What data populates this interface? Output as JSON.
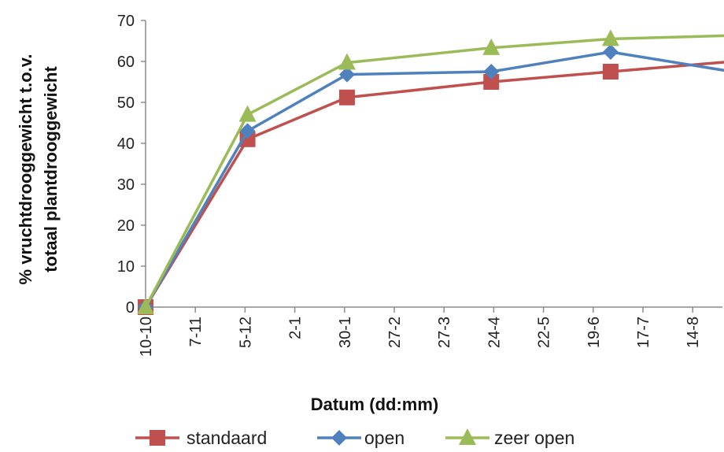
{
  "chart_data": {
    "type": "line",
    "title": "",
    "xlabel": "Datum (dd:mm)",
    "ylabel_lines": [
      "% vruchtdrooggewicht t.o.v.",
      "totaal plantdrooggewicht"
    ],
    "categories": [
      "10-10",
      "7-11",
      "5-12",
      "2-1",
      "30-1",
      "27-2",
      "27-3",
      "24-4",
      "22-5",
      "19-6",
      "17-7",
      "14-8"
    ],
    "ylim": [
      0,
      70
    ],
    "yticks": [
      0,
      10,
      20,
      30,
      40,
      50,
      60,
      70
    ],
    "grid": false,
    "legend_position": "bottom",
    "series": [
      {
        "name": "standaard",
        "color": "#C0504D",
        "marker": "square",
        "points": [
          {
            "x": 0,
            "y": 0
          },
          {
            "x": 2.05,
            "y": 41
          },
          {
            "x": 4.05,
            "y": 51.2
          },
          {
            "x": 6.95,
            "y": 55
          },
          {
            "x": 9.35,
            "y": 57.5
          },
          {
            "x": 12.3,
            "y": 60.5
          }
        ]
      },
      {
        "name": "open",
        "color": "#4F81BD",
        "marker": "diamond",
        "points": [
          {
            "x": 0,
            "y": 0
          },
          {
            "x": 2.05,
            "y": 43
          },
          {
            "x": 4.05,
            "y": 56.8
          },
          {
            "x": 6.95,
            "y": 57.5
          },
          {
            "x": 9.35,
            "y": 62.3
          },
          {
            "x": 12.3,
            "y": 56.5
          }
        ]
      },
      {
        "name": "zeer open",
        "color": "#9BBB59",
        "marker": "triangle",
        "points": [
          {
            "x": 0,
            "y": 0
          },
          {
            "x": 2.05,
            "y": 47
          },
          {
            "x": 4.05,
            "y": 59.7
          },
          {
            "x": 6.95,
            "y": 63.3
          },
          {
            "x": 9.35,
            "y": 65.5
          },
          {
            "x": 12.3,
            "y": 66.5
          }
        ]
      }
    ]
  }
}
